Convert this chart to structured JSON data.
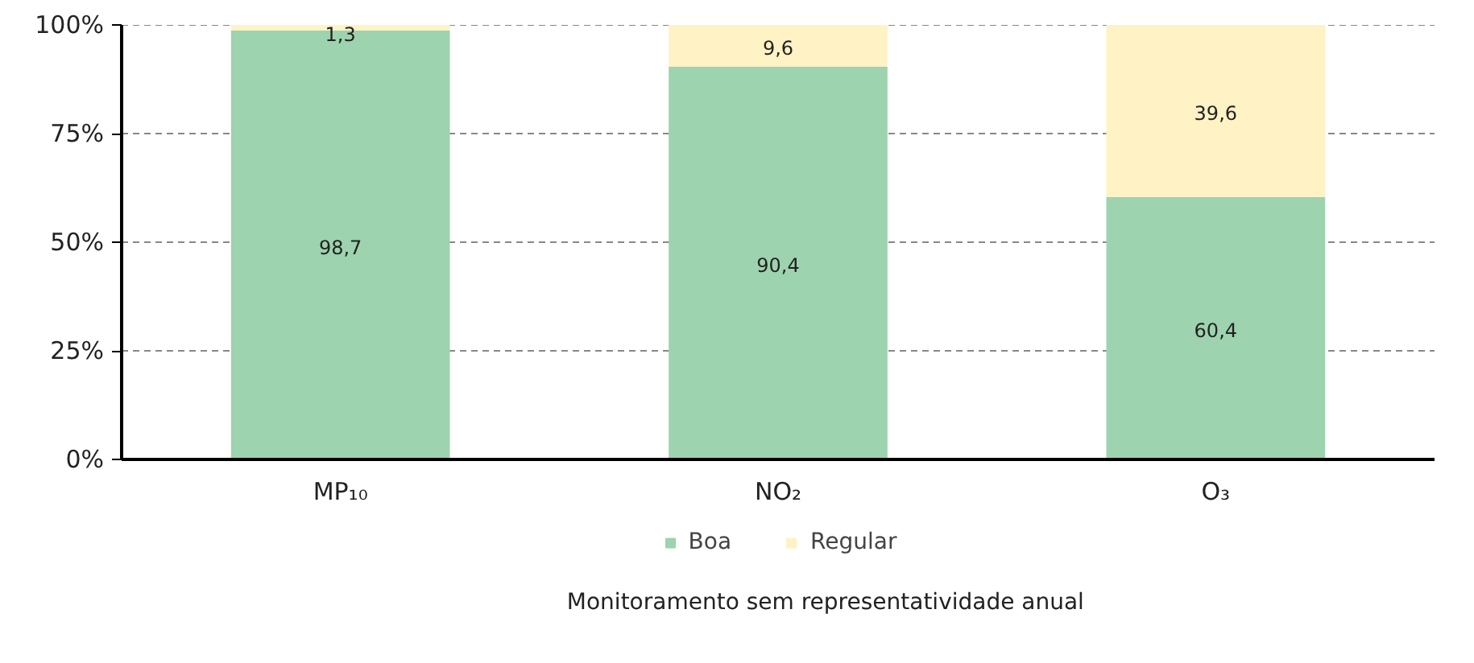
{
  "chart_data": {
    "type": "bar",
    "stacked": true,
    "categories": [
      "MP₁₀",
      "NO₂",
      "O₃"
    ],
    "series": [
      {
        "name": "Boa",
        "color": "#9dd3ae",
        "values": [
          98.7,
          90.4,
          60.4
        ],
        "value_labels": [
          "98,7",
          "90,4",
          "60,4"
        ]
      },
      {
        "name": "Regular",
        "color": "#fff2c4",
        "values": [
          1.3,
          9.6,
          39.6
        ],
        "value_labels": [
          "1,3",
          "9,6",
          "39,6"
        ]
      }
    ],
    "ylim": [
      0,
      100
    ],
    "yticks": [
      {
        "value": 0,
        "label": "0%"
      },
      {
        "value": 25,
        "label": "25%"
      },
      {
        "value": 50,
        "label": "50%"
      },
      {
        "value": 75,
        "label": "75%"
      },
      {
        "value": 100,
        "label": "100%"
      }
    ],
    "grid": "y",
    "legend": "bottom",
    "annotations": [
      "Monitoramento sem representatividade anual"
    ]
  }
}
